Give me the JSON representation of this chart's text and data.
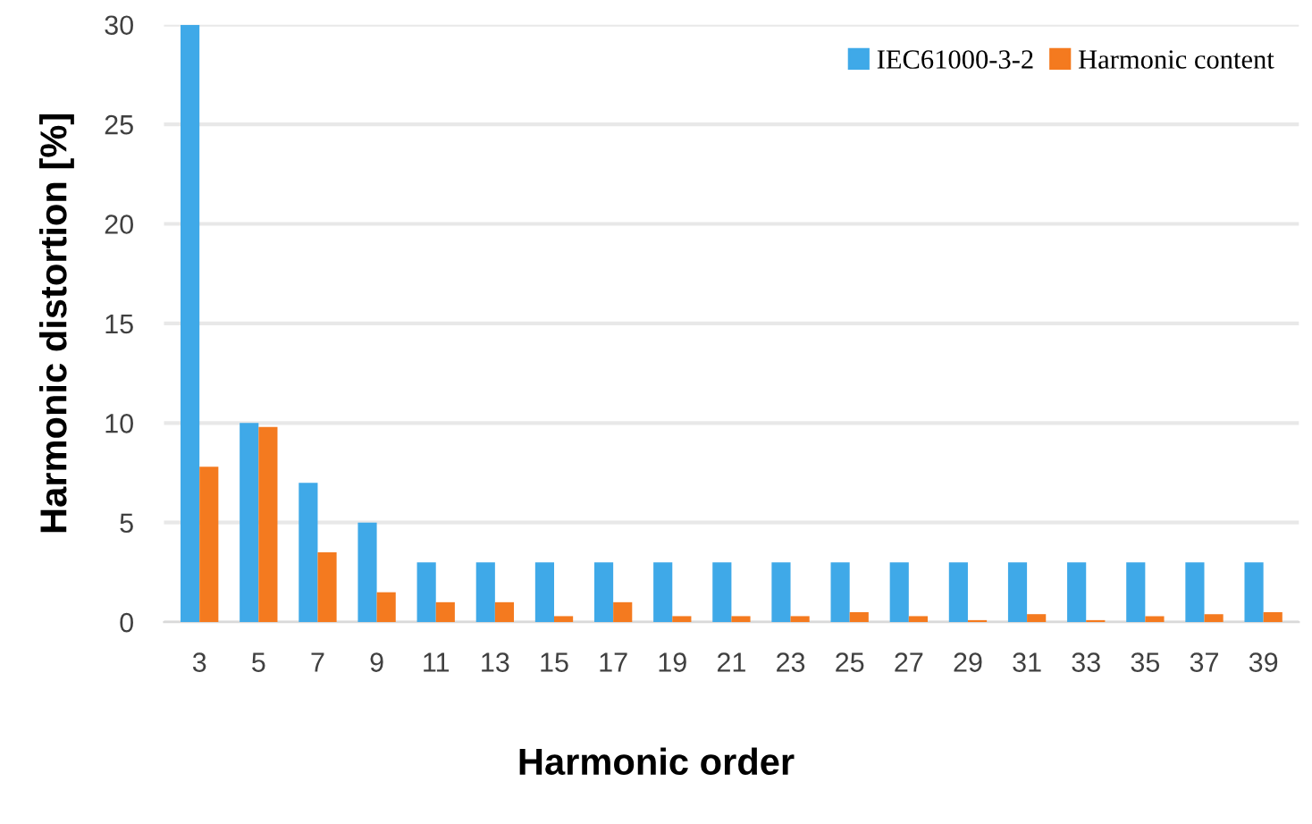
{
  "chart_data": {
    "type": "bar",
    "xlabel": "Harmonic order",
    "ylabel": "Harmonic distortion [%]",
    "categories": [
      "3",
      "5",
      "7",
      "9",
      "11",
      "13",
      "15",
      "17",
      "19",
      "21",
      "23",
      "25",
      "27",
      "29",
      "31",
      "33",
      "35",
      "37",
      "39"
    ],
    "series": [
      {
        "name": "IEC61000-3-2",
        "color": "#3fa9e8",
        "values": [
          30,
          10,
          7,
          5,
          3,
          3,
          3,
          3,
          3,
          3,
          3,
          3,
          3,
          3,
          3,
          3,
          3,
          3,
          3
        ]
      },
      {
        "name": "Harmonic content",
        "color": "#f47a1f",
        "values": [
          7.8,
          9.8,
          3.5,
          1.5,
          1.0,
          1.0,
          0.3,
          1.0,
          0.3,
          0.3,
          0.3,
          0.5,
          0.3,
          0.1,
          0.4,
          0.1,
          0.3,
          0.4,
          0.5
        ]
      }
    ],
    "ylim": [
      0,
      30
    ],
    "yticks": [
      0,
      5,
      10,
      15,
      20,
      25,
      30
    ],
    "grid": "y",
    "legend": "top right"
  }
}
